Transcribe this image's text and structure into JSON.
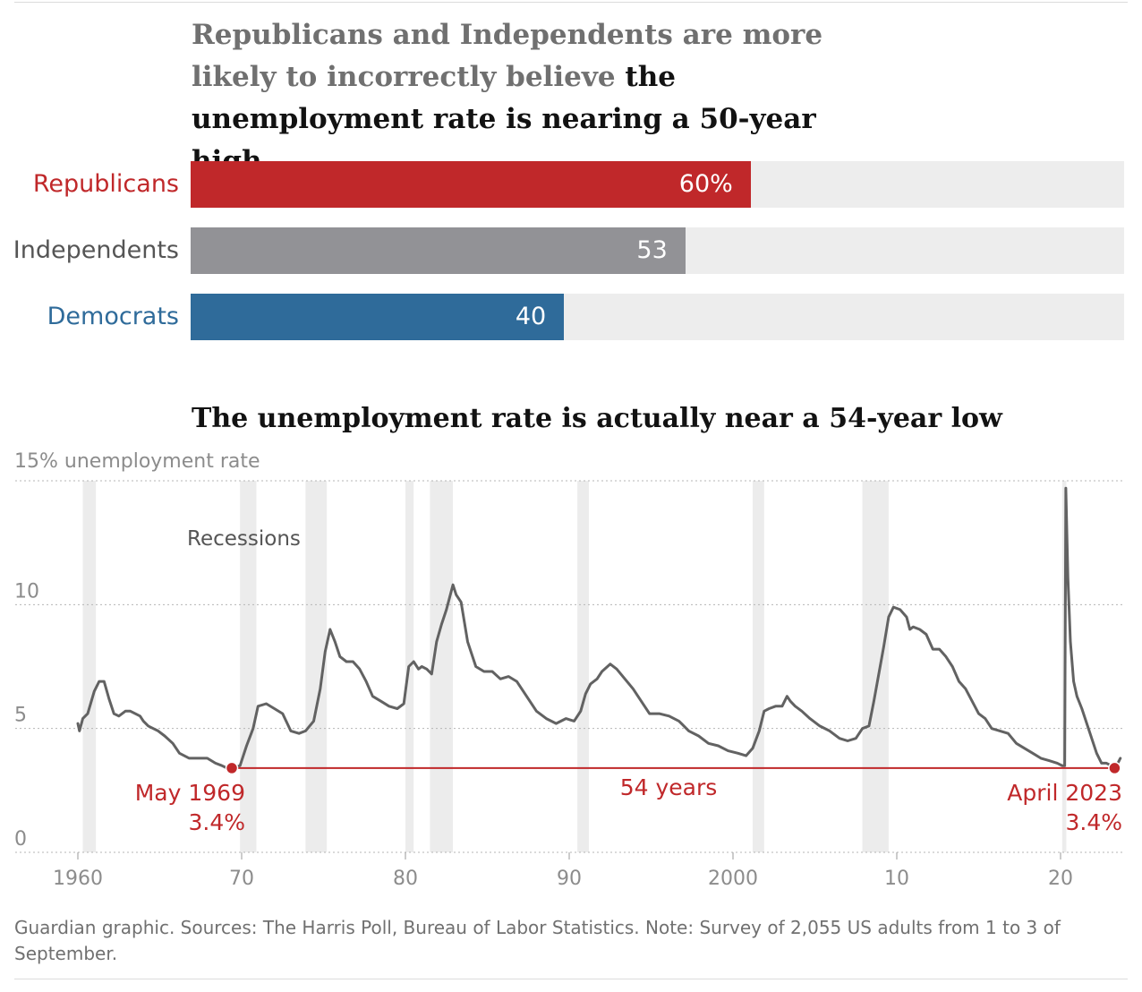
{
  "headline": {
    "lead": "Republicans and Independents are more likely to incorrectly believe",
    "highlight": "the unemployment rate is nearing a 50-year high"
  },
  "bar_chart": {
    "max": 100,
    "items": [
      {
        "label": "Republicans",
        "value": 60,
        "display": "60%",
        "color": "#c0282a"
      },
      {
        "label": "Independents",
        "value": 53,
        "display": "53",
        "color": "#929296"
      },
      {
        "label": "Democrats",
        "value": 40,
        "display": "40",
        "color": "#2f6b9a"
      }
    ]
  },
  "line_title": "The unemployment rate is actually near a 54-year low",
  "axis_title": "15% unemployment rate",
  "colors": {
    "line": "#626262",
    "highlight": "#c0282a",
    "recession": "#ececec"
  },
  "chart_data": [
    {
      "type": "bar",
      "orientation": "horizontal",
      "categories": [
        "Republicans",
        "Independents",
        "Democrats"
      ],
      "values": [
        60,
        53,
        40
      ],
      "value_labels": [
        "60%",
        "53",
        "40"
      ],
      "xlim": [
        0,
        100
      ]
    },
    {
      "type": "line",
      "title": "The unemployment rate is actually near a 54-year low",
      "ylabel": "15% unemployment rate",
      "ylim": [
        0,
        15
      ],
      "yticks": [
        {
          "value": 0,
          "label": "0"
        },
        {
          "value": 5,
          "label": "5"
        },
        {
          "value": 10,
          "label": "10"
        },
        {
          "value": 15,
          "label": "15% unemployment rate"
        }
      ],
      "xlim": [
        1960,
        2023.7
      ],
      "xticks": [
        {
          "value": 1960,
          "label": "1960"
        },
        {
          "value": 1970,
          "label": "70"
        },
        {
          "value": 1980,
          "label": "80"
        },
        {
          "value": 1990,
          "label": "90"
        },
        {
          "value": 2000,
          "label": "2000"
        },
        {
          "value": 2010,
          "label": "10"
        },
        {
          "value": 2020,
          "label": "20"
        }
      ],
      "grid": "horizontal dotted",
      "series": [
        {
          "x": [
            1960.0,
            1960.1,
            1960.3,
            1960.6,
            1961.0,
            1961.3,
            1961.6,
            1961.9,
            1962.2,
            1962.5,
            1962.9,
            1963.2,
            1963.5,
            1963.8,
            1964.0,
            1964.3,
            1964.6,
            1964.9,
            1965.3,
            1965.8,
            1966.2,
            1966.8,
            1967.3,
            1967.9,
            1968.4,
            1968.8,
            1969.1,
            1969.4,
            1969.9,
            1970.3,
            1970.7,
            1971.0,
            1971.5,
            1972.0,
            1972.5,
            1973.0,
            1973.5,
            1973.9,
            1974.4,
            1974.8,
            1975.1,
            1975.4,
            1975.7,
            1976.0,
            1976.4,
            1976.8,
            1977.2,
            1977.6,
            1978.0,
            1978.5,
            1979.0,
            1979.5,
            1979.9,
            1980.2,
            1980.5,
            1980.8,
            1981.0,
            1981.3,
            1981.6,
            1981.9,
            1982.2,
            1982.5,
            1982.9,
            1983.1,
            1983.4,
            1983.8,
            1984.3,
            1984.8,
            1985.3,
            1985.8,
            1986.3,
            1986.8,
            1987.4,
            1988.0,
            1988.6,
            1989.2,
            1989.8,
            1990.3,
            1990.7,
            1991.0,
            1991.3,
            1991.7,
            1992.0,
            1992.5,
            1992.9,
            1993.4,
            1993.9,
            1994.4,
            1994.9,
            1995.5,
            1996.1,
            1996.7,
            1997.3,
            1997.9,
            1998.5,
            1999.1,
            1999.7,
            2000.3,
            2000.8,
            2001.2,
            2001.6,
            2001.9,
            2002.2,
            2002.6,
            2003.0,
            2003.3,
            2003.5,
            2003.8,
            2004.2,
            2004.7,
            2005.3,
            2005.9,
            2006.5,
            2007.0,
            2007.5,
            2007.9,
            2008.3,
            2008.6,
            2008.9,
            2009.2,
            2009.5,
            2009.8,
            2010.2,
            2010.6,
            2010.8,
            2011.0,
            2011.4,
            2011.8,
            2012.2,
            2012.6,
            2013.0,
            2013.4,
            2013.8,
            2014.2,
            2014.6,
            2015.0,
            2015.4,
            2015.8,
            2016.3,
            2016.8,
            2017.3,
            2017.8,
            2018.3,
            2018.8,
            2019.3,
            2019.8,
            2020.1,
            2020.25,
            2020.32,
            2020.45,
            2020.6,
            2020.8,
            2021.0,
            2021.3,
            2021.6,
            2021.9,
            2022.2,
            2022.5,
            2022.8,
            2023.1,
            2023.3,
            2023.5,
            2023.65
          ],
          "y": [
            5.2,
            4.9,
            5.4,
            5.6,
            6.5,
            6.9,
            6.9,
            6.2,
            5.6,
            5.5,
            5.7,
            5.7,
            5.6,
            5.5,
            5.3,
            5.1,
            5.0,
            4.9,
            4.7,
            4.4,
            4.0,
            3.8,
            3.8,
            3.8,
            3.6,
            3.5,
            3.4,
            3.4,
            3.5,
            4.3,
            5.0,
            5.9,
            6.0,
            5.8,
            5.6,
            4.9,
            4.8,
            4.9,
            5.3,
            6.6,
            8.1,
            9.0,
            8.5,
            7.9,
            7.7,
            7.7,
            7.4,
            6.9,
            6.3,
            6.1,
            5.9,
            5.8,
            6.0,
            7.5,
            7.7,
            7.4,
            7.5,
            7.4,
            7.2,
            8.5,
            9.2,
            9.8,
            10.8,
            10.4,
            10.1,
            8.5,
            7.5,
            7.3,
            7.3,
            7.0,
            7.1,
            6.9,
            6.3,
            5.7,
            5.4,
            5.2,
            5.4,
            5.3,
            5.7,
            6.4,
            6.8,
            7.0,
            7.3,
            7.6,
            7.4,
            7.0,
            6.6,
            6.1,
            5.6,
            5.6,
            5.5,
            5.3,
            4.9,
            4.7,
            4.4,
            4.3,
            4.1,
            4.0,
            3.9,
            4.2,
            4.9,
            5.7,
            5.8,
            5.9,
            5.9,
            6.3,
            6.1,
            5.9,
            5.7,
            5.4,
            5.1,
            4.9,
            4.6,
            4.5,
            4.6,
            5.0,
            5.1,
            6.1,
            7.2,
            8.3,
            9.5,
            9.9,
            9.8,
            9.5,
            9.0,
            9.1,
            9.0,
            8.8,
            8.2,
            8.2,
            7.9,
            7.5,
            6.9,
            6.6,
            6.1,
            5.6,
            5.4,
            5.0,
            4.9,
            4.8,
            4.4,
            4.2,
            4.0,
            3.8,
            3.7,
            3.6,
            3.5,
            3.5,
            14.7,
            11.1,
            8.5,
            6.9,
            6.3,
            5.8,
            5.2,
            4.6,
            4.0,
            3.6,
            3.6,
            3.5,
            3.4,
            3.6,
            3.8
          ]
        }
      ],
      "recessions": [
        [
          1960.3,
          1961.1
        ],
        [
          1969.9,
          1970.9
        ],
        [
          1973.9,
          1975.2
        ],
        [
          1980.0,
          1980.5
        ],
        [
          1981.5,
          1982.9
        ],
        [
          1990.5,
          1991.2
        ],
        [
          2001.2,
          2001.9
        ],
        [
          2007.9,
          2009.5
        ],
        [
          2020.1,
          2020.35
        ]
      ],
      "annotations": {
        "recessions_label": "Recessions",
        "start": {
          "x": 1969.4,
          "y": 3.4,
          "label_top": "May 1969",
          "label_bottom": "3.4%"
        },
        "end": {
          "x": 2023.3,
          "y": 3.4,
          "label_top": "April 2023",
          "label_bottom": "3.4%"
        },
        "span_label": "54 years"
      }
    }
  ],
  "footnote": "Guardian graphic. Sources: The Harris Poll, Bureau of Labor Statistics. Note: Survey of 2,055 US adults from 1 to 3 of September."
}
